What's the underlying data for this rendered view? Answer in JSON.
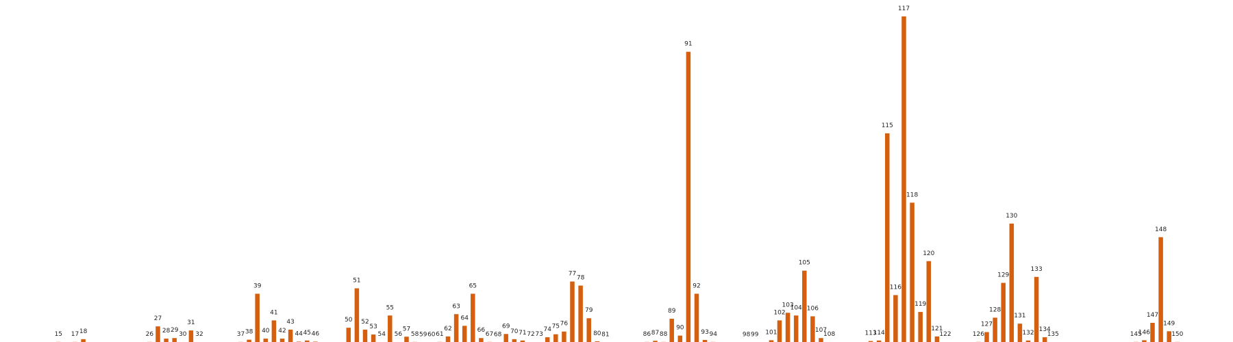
{
  "chart_data": {
    "type": "bar",
    "colors": {
      "bar": "#d35f0f",
      "label": "#222222",
      "background": "#ffffff"
    },
    "grid": false,
    "ylim": [
      0,
      120
    ],
    "bars": [
      {
        "label": "15",
        "value": 0.3
      },
      {
        "label": "17",
        "value": 0.3
      },
      {
        "label": "18",
        "value": 1.3
      },
      {
        "label": "26",
        "value": 0.3
      },
      {
        "label": "27",
        "value": 6.0
      },
      {
        "label": "28",
        "value": 1.5
      },
      {
        "label": "29",
        "value": 1.7
      },
      {
        "label": "30",
        "value": 0.2
      },
      {
        "label": "31",
        "value": 4.5
      },
      {
        "label": "32",
        "value": 0.2
      },
      {
        "label": "37",
        "value": 0.3
      },
      {
        "label": "38",
        "value": 1.1
      },
      {
        "label": "39",
        "value": 18.0
      },
      {
        "label": "40",
        "value": 1.5
      },
      {
        "label": "41",
        "value": 8.2
      },
      {
        "label": "42",
        "value": 1.5
      },
      {
        "label": "43",
        "value": 4.8
      },
      {
        "label": "44",
        "value": 0.4
      },
      {
        "label": "45",
        "value": 0.8
      },
      {
        "label": "46",
        "value": 0.4
      },
      {
        "label": "50",
        "value": 5.5
      },
      {
        "label": "51",
        "value": 20.0
      },
      {
        "label": "52",
        "value": 4.8
      },
      {
        "label": "53",
        "value": 3.0
      },
      {
        "label": "54",
        "value": 0.2
      },
      {
        "label": "55",
        "value": 10.0
      },
      {
        "label": "56",
        "value": 0.2
      },
      {
        "label": "57",
        "value": 2.2
      },
      {
        "label": "58",
        "value": 0.3
      },
      {
        "label": "59",
        "value": 0.1
      },
      {
        "label": "60",
        "value": 0.1
      },
      {
        "label": "61",
        "value": 0.3
      },
      {
        "label": "62",
        "value": 2.3
      },
      {
        "label": "63",
        "value": 10.5
      },
      {
        "label": "64",
        "value": 6.2
      },
      {
        "label": "65",
        "value": 18.0
      },
      {
        "label": "66",
        "value": 1.7
      },
      {
        "label": "67",
        "value": 0.3
      },
      {
        "label": "68",
        "value": 0.1
      },
      {
        "label": "69",
        "value": 3.2
      },
      {
        "label": "70",
        "value": 1.3
      },
      {
        "label": "71",
        "value": 0.8
      },
      {
        "label": "72",
        "value": 0.2
      },
      {
        "label": "73",
        "value": 0.2
      },
      {
        "label": "74",
        "value": 2.0
      },
      {
        "label": "75",
        "value": 3.1
      },
      {
        "label": "76",
        "value": 4.1
      },
      {
        "label": "77",
        "value": 22.5
      },
      {
        "label": "78",
        "value": 21.0
      },
      {
        "label": "79",
        "value": 9.0
      },
      {
        "label": "80",
        "value": 0.5
      },
      {
        "label": "81",
        "value": 0.1
      },
      {
        "label": "86",
        "value": 0.3
      },
      {
        "label": "87",
        "value": 0.7
      },
      {
        "label": "88",
        "value": 0.3
      },
      {
        "label": "89",
        "value": 8.8
      },
      {
        "label": "90",
        "value": 2.6
      },
      {
        "label": "91",
        "value": 107.0
      },
      {
        "label": "92",
        "value": 18.0
      },
      {
        "label": "93",
        "value": 1.0
      },
      {
        "label": "94",
        "value": 0.3
      },
      {
        "label": "98",
        "value": 0.1
      },
      {
        "label": "99",
        "value": 0.1
      },
      {
        "label": "101",
        "value": 0.9
      },
      {
        "label": "102",
        "value": 8.2
      },
      {
        "label": "103",
        "value": 11.0
      },
      {
        "label": "104",
        "value": 10.0
      },
      {
        "label": "105",
        "value": 26.5
      },
      {
        "label": "106",
        "value": 9.7
      },
      {
        "label": "107",
        "value": 1.7
      },
      {
        "label": "108",
        "value": 0.2
      },
      {
        "label": "113",
        "value": 0.6
      },
      {
        "label": "114",
        "value": 0.8
      },
      {
        "label": "115",
        "value": 77.0
      },
      {
        "label": "116",
        "value": 17.5
      },
      {
        "label": "117",
        "value": 120.0
      },
      {
        "label": "118",
        "value": 51.5
      },
      {
        "label": "119",
        "value": 11.3
      },
      {
        "label": "120",
        "value": 30.0
      },
      {
        "label": "121",
        "value": 2.3
      },
      {
        "label": "122",
        "value": 0.2
      },
      {
        "label": "126",
        "value": 0.3
      },
      {
        "label": "127",
        "value": 3.9
      },
      {
        "label": "128",
        "value": 9.2
      },
      {
        "label": "129",
        "value": 22.0
      },
      {
        "label": "130",
        "value": 43.8
      },
      {
        "label": "131",
        "value": 7.0
      },
      {
        "label": "132",
        "value": 0.8
      },
      {
        "label": "133",
        "value": 24.2
      },
      {
        "label": "134",
        "value": 2.0
      },
      {
        "label": "135",
        "value": 0.2
      },
      {
        "label": "145",
        "value": 0.3
      },
      {
        "label": "146",
        "value": 0.9
      },
      {
        "label": "147",
        "value": 7.3
      },
      {
        "label": "148",
        "value": 38.8
      },
      {
        "label": "149",
        "value": 4.2
      },
      {
        "label": "150",
        "value": 0.3
      }
    ]
  }
}
